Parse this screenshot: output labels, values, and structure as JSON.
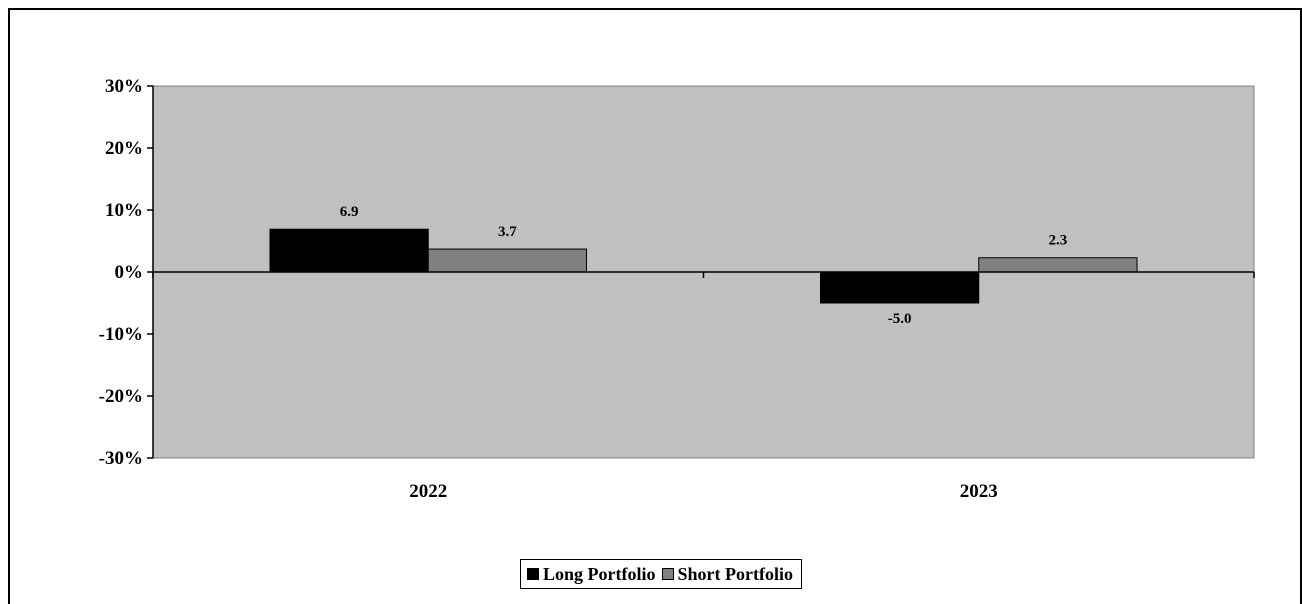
{
  "chart_data": {
    "type": "bar",
    "categories": [
      "2022",
      "2023"
    ],
    "series": [
      {
        "name": "Long Portfolio",
        "values": [
          6.9,
          -5.0
        ],
        "labels": [
          "6.9",
          "-5.0"
        ],
        "color": "#000000"
      },
      {
        "name": "Short Portfolio",
        "values": [
          3.7,
          2.3
        ],
        "labels": [
          "3.7",
          "2.3"
        ],
        "color": "#808080"
      }
    ],
    "y_ticks": [
      30,
      20,
      10,
      0,
      -10,
      -20,
      -30
    ],
    "y_tick_labels": [
      "30%",
      "20%",
      "10%",
      "0%",
      "-10%",
      "-20%",
      "-30%"
    ],
    "ylim": [
      -30,
      30
    ],
    "y_unit": "%",
    "grid": false,
    "plot_background": "#c0c0c0",
    "legend_position": "bottom"
  }
}
